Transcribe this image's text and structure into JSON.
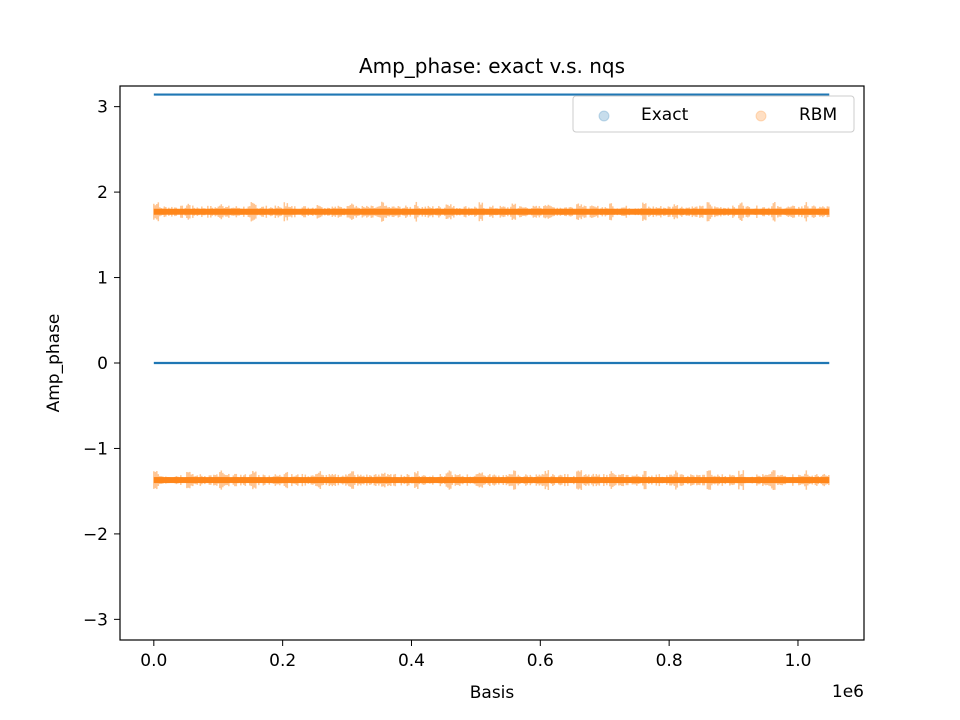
{
  "chart_data": {
    "type": "scatter",
    "title": "Amp_phase: exact v.s. nqs",
    "xlabel": "Basis",
    "ylabel": "Amp_phase",
    "x_offset_label": "1e6",
    "xlim": [
      -0.0525,
      1.1025
    ],
    "ylim": [
      -3.2416,
      3.2416
    ],
    "x_scale": 1000000,
    "xticks": [
      0.0,
      0.2,
      0.4,
      0.6,
      0.8,
      1.0
    ],
    "xtick_labels": [
      "0.0",
      "0.2",
      "0.4",
      "0.6",
      "0.8",
      "1.0"
    ],
    "yticks": [
      3,
      2,
      1,
      0,
      -1,
      -2,
      -3
    ],
    "ytick_labels": [
      "3",
      "2",
      "1",
      "0",
      "−1",
      "−2",
      "−3"
    ],
    "x_range": [
      0,
      1048576
    ],
    "grid": false,
    "legend": {
      "placement": "upper-right",
      "ncol": 2
    },
    "series": [
      {
        "name": "Exact",
        "color": "#1f77b4",
        "levels": [
          3.1416,
          0.0
        ],
        "spread": 0.0
      },
      {
        "name": "RBM",
        "color": "#ff7f0e",
        "levels": [
          1.77,
          -1.37
        ],
        "spread": 0.09
      }
    ]
  }
}
